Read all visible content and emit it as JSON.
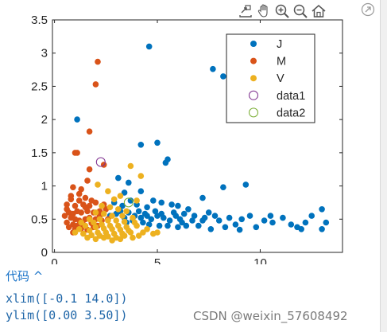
{
  "toolbar": {
    "buttons": [
      {
        "name": "export-icon"
      },
      {
        "name": "pan-hand-icon"
      },
      {
        "name": "zoom-in-icon"
      },
      {
        "name": "zoom-out-icon"
      },
      {
        "name": "home-restore-icon"
      }
    ],
    "expand_icon": "expand-arrow-icon"
  },
  "code_section": {
    "header": "代码 ^",
    "lines": [
      "xlim([-0.1 14.0])",
      "ylim([0.00 3.50])"
    ]
  },
  "watermark": "CSDN @weixin_57608492",
  "chart_data": {
    "type": "scatter",
    "xlim": [
      -0.1,
      14.0
    ],
    "ylim": [
      0.0,
      3.5
    ],
    "x_ticks": [
      "0",
      "5",
      "10"
    ],
    "y_ticks": [
      "0",
      "0.5",
      "1",
      "1.5",
      "2",
      "2.5",
      "3",
      "3.5"
    ],
    "grid": false,
    "legend_position": "top-right",
    "series": [
      {
        "name": "J",
        "marker": "filled-circle",
        "color": "#0072BD",
        "points": [
          [
            4.6,
            3.1
          ],
          [
            7.7,
            2.76
          ],
          [
            8.2,
            2.65
          ],
          [
            1.1,
            2.0
          ],
          [
            5.0,
            1.65
          ],
          [
            4.2,
            1.62
          ],
          [
            5.4,
            1.35
          ],
          [
            5.5,
            1.4
          ],
          [
            3.1,
            1.12
          ],
          [
            3.6,
            1.05
          ],
          [
            9.3,
            1.02
          ],
          [
            8.2,
            0.98
          ],
          [
            4.2,
            0.92
          ],
          [
            7.2,
            0.82
          ],
          [
            3.4,
            0.9
          ],
          [
            4.8,
            0.78
          ],
          [
            5.2,
            0.75
          ],
          [
            5.7,
            0.72
          ],
          [
            6.0,
            0.7
          ],
          [
            7.5,
            0.6
          ],
          [
            6.5,
            0.65
          ],
          [
            8.5,
            0.52
          ],
          [
            9.5,
            0.55
          ],
          [
            10.5,
            0.55
          ],
          [
            10.6,
            0.45
          ],
          [
            11.5,
            0.42
          ],
          [
            11.8,
            0.38
          ],
          [
            12.2,
            0.45
          ],
          [
            13.0,
            0.35
          ],
          [
            12.5,
            0.55
          ],
          [
            13.2,
            0.45
          ],
          [
            13.0,
            0.65
          ],
          [
            12.0,
            0.35
          ],
          [
            11.1,
            0.52
          ],
          [
            10.2,
            0.48
          ],
          [
            9.8,
            0.38
          ],
          [
            9.1,
            0.5
          ],
          [
            8.8,
            0.42
          ],
          [
            8.0,
            0.48
          ],
          [
            7.8,
            0.55
          ],
          [
            7.2,
            0.48
          ],
          [
            6.8,
            0.55
          ],
          [
            6.2,
            0.45
          ],
          [
            5.9,
            0.55
          ],
          [
            5.6,
            0.48
          ],
          [
            5.3,
            0.52
          ],
          [
            5.0,
            0.55
          ],
          [
            4.7,
            0.5
          ],
          [
            4.4,
            0.58
          ],
          [
            4.1,
            0.62
          ],
          [
            3.9,
            0.55
          ],
          [
            3.6,
            0.6
          ],
          [
            3.4,
            0.52
          ],
          [
            3.8,
            0.48
          ],
          [
            4.3,
            0.45
          ],
          [
            4.6,
            0.42
          ],
          [
            5.1,
            0.4
          ],
          [
            5.5,
            0.4
          ],
          [
            6.0,
            0.38
          ],
          [
            6.4,
            0.4
          ],
          [
            7.0,
            0.4
          ],
          [
            7.6,
            0.35
          ],
          [
            8.3,
            0.38
          ],
          [
            9.0,
            0.34
          ],
          [
            4.0,
            0.72
          ],
          [
            4.5,
            0.68
          ],
          [
            3.3,
            0.7
          ],
          [
            3.7,
            0.78
          ],
          [
            4.9,
            0.62
          ],
          [
            5.8,
            0.6
          ],
          [
            6.3,
            0.58
          ],
          [
            6.7,
            0.48
          ],
          [
            7.3,
            0.52
          ],
          [
            3.2,
            0.62
          ],
          [
            3.5,
            0.45
          ],
          [
            4.2,
            0.52
          ],
          [
            2.9,
            0.75
          ],
          [
            2.7,
            0.55
          ],
          [
            3.0,
            0.58
          ],
          [
            4.5,
            0.55
          ],
          [
            5.2,
            0.58
          ],
          [
            6.1,
            0.5
          ]
        ]
      },
      {
        "name": "M",
        "marker": "filled-circle",
        "color": "#D95319",
        "points": [
          [
            2.1,
            2.87
          ],
          [
            2.0,
            2.53
          ],
          [
            1.7,
            1.82
          ],
          [
            1.0,
            1.5
          ],
          [
            1.1,
            1.5
          ],
          [
            2.4,
            1.32
          ],
          [
            1.7,
            1.25
          ],
          [
            1.6,
            1.08
          ],
          [
            1.3,
            0.95
          ],
          [
            0.9,
            0.98
          ],
          [
            0.8,
            0.85
          ],
          [
            1.2,
            0.88
          ],
          [
            1.5,
            0.82
          ],
          [
            1.8,
            0.78
          ],
          [
            2.0,
            0.75
          ],
          [
            1.4,
            0.72
          ],
          [
            1.0,
            0.7
          ],
          [
            0.6,
            0.65
          ],
          [
            0.7,
            0.6
          ],
          [
            0.9,
            0.58
          ],
          [
            1.1,
            0.62
          ],
          [
            1.3,
            0.6
          ],
          [
            1.6,
            0.62
          ],
          [
            1.9,
            0.6
          ],
          [
            2.2,
            0.62
          ],
          [
            2.5,
            0.65
          ],
          [
            0.5,
            0.55
          ],
          [
            0.8,
            0.52
          ],
          [
            1.0,
            0.5
          ],
          [
            1.2,
            0.48
          ],
          [
            1.5,
            0.5
          ],
          [
            1.7,
            0.52
          ],
          [
            2.0,
            0.5
          ],
          [
            2.3,
            0.48
          ],
          [
            0.6,
            0.45
          ],
          [
            0.9,
            0.42
          ],
          [
            1.1,
            0.4
          ],
          [
            1.4,
            0.42
          ],
          [
            1.8,
            0.44
          ],
          [
            2.1,
            0.4
          ],
          [
            0.7,
            0.38
          ],
          [
            1.0,
            0.35
          ],
          [
            1.3,
            0.36
          ],
          [
            1.6,
            0.34
          ],
          [
            0.8,
            0.8
          ],
          [
            1.2,
            0.78
          ],
          [
            1.7,
            0.7
          ],
          [
            2.4,
            0.72
          ],
          [
            0.6,
            0.72
          ],
          [
            1.5,
            0.68
          ],
          [
            2.2,
            0.55
          ],
          [
            1.9,
            0.38
          ],
          [
            2.6,
            0.5
          ],
          [
            0.9,
            0.3
          ]
        ]
      },
      {
        "name": "V",
        "marker": "filled-circle",
        "color": "#EDB120",
        "points": [
          [
            3.7,
            1.3
          ],
          [
            4.2,
            1.15
          ],
          [
            2.1,
            1.02
          ],
          [
            2.6,
            0.92
          ],
          [
            2.9,
            0.8
          ],
          [
            3.2,
            0.85
          ],
          [
            4.0,
            0.78
          ],
          [
            2.3,
            0.7
          ],
          [
            2.7,
            0.68
          ],
          [
            3.1,
            0.65
          ],
          [
            3.5,
            0.62
          ],
          [
            2.0,
            0.6
          ],
          [
            2.4,
            0.58
          ],
          [
            2.8,
            0.55
          ],
          [
            3.3,
            0.55
          ],
          [
            3.8,
            0.52
          ],
          [
            2.2,
            0.5
          ],
          [
            2.6,
            0.48
          ],
          [
            3.0,
            0.48
          ],
          [
            3.4,
            0.46
          ],
          [
            3.9,
            0.45
          ],
          [
            1.9,
            0.45
          ],
          [
            2.3,
            0.42
          ],
          [
            2.7,
            0.4
          ],
          [
            3.1,
            0.4
          ],
          [
            3.5,
            0.38
          ],
          [
            4.0,
            0.4
          ],
          [
            1.5,
            0.4
          ],
          [
            2.0,
            0.38
          ],
          [
            2.4,
            0.36
          ],
          [
            2.8,
            0.35
          ],
          [
            3.2,
            0.34
          ],
          [
            3.6,
            0.33
          ],
          [
            1.2,
            0.35
          ],
          [
            1.7,
            0.33
          ],
          [
            2.1,
            0.3
          ],
          [
            2.5,
            0.3
          ],
          [
            2.9,
            0.28
          ],
          [
            3.3,
            0.28
          ],
          [
            3.7,
            0.3
          ],
          [
            1.4,
            0.28
          ],
          [
            1.8,
            0.26
          ],
          [
            2.2,
            0.25
          ],
          [
            2.6,
            0.24
          ],
          [
            3.0,
            0.22
          ],
          [
            3.4,
            0.25
          ],
          [
            4.3,
            0.3
          ],
          [
            4.8,
            0.28
          ],
          [
            5.0,
            0.3
          ],
          [
            4.5,
            0.35
          ],
          [
            1.0,
            0.3
          ],
          [
            1.6,
            0.22
          ],
          [
            2.0,
            0.2
          ],
          [
            2.8,
            0.18
          ],
          [
            3.2,
            0.2
          ],
          [
            3.8,
            0.22
          ],
          [
            4.1,
            0.25
          ],
          [
            2.4,
            0.22
          ],
          [
            1.3,
            0.45
          ],
          [
            1.7,
            0.5
          ]
        ]
      },
      {
        "name": "data1",
        "marker": "open-circle",
        "color": "#7E2F8E",
        "points": [
          [
            2.25,
            1.36
          ]
        ]
      },
      {
        "name": "data2",
        "marker": "open-circle",
        "color": "#77AC30",
        "points": [
          [
            3.6,
            0.75
          ]
        ]
      }
    ]
  }
}
